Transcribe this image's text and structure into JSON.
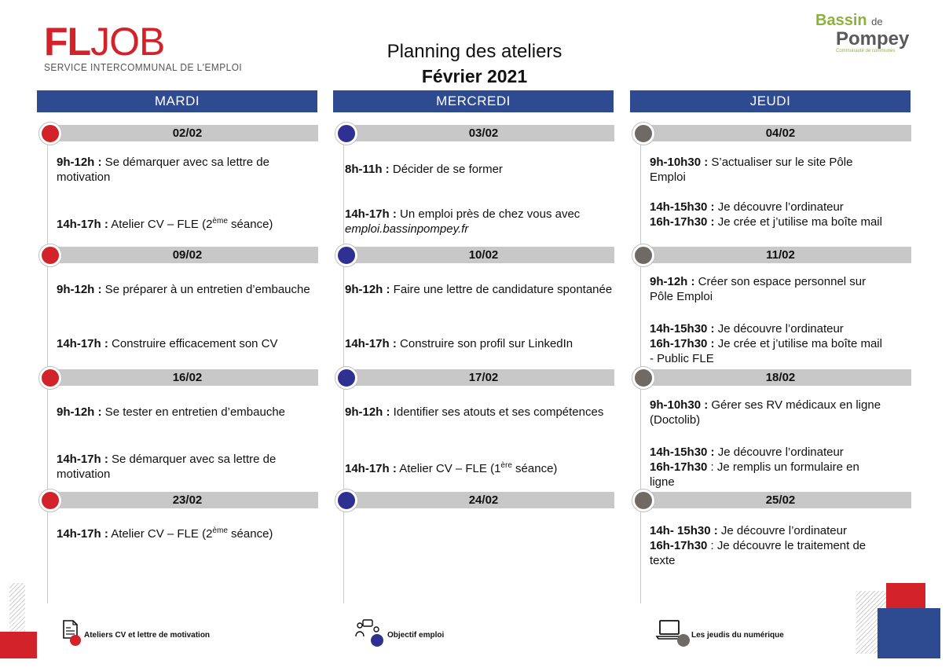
{
  "logo_left": {
    "main_bold": "FL",
    "main_rest": "JOB",
    "sub": "SERVICE INTERCOMMUNAL DE L'EMPLOI"
  },
  "logo_right": {
    "line1": "Bassin",
    "line1_small": "de",
    "line2": "Pompey",
    "line3": "Communauté de communes"
  },
  "title": "Planning des ateliers",
  "subtitle": "Février 2021",
  "colors": {
    "header": "#2e4a91",
    "mardi": "#d2232a",
    "mercredi": "#2e3192",
    "jeudi": "#6f6a64",
    "datebar": "#c8c8c8"
  },
  "days": [
    "MARDI",
    "MERCREDI",
    "JEUDI"
  ],
  "weeks": [
    {
      "dates": [
        "02/02",
        "03/02",
        "04/02"
      ]
    },
    {
      "dates": [
        "09/02",
        "10/02",
        "11/02"
      ]
    },
    {
      "dates": [
        "16/02",
        "17/02",
        "18/02"
      ]
    },
    {
      "dates": [
        "23/02",
        "24/02",
        "25/02"
      ]
    }
  ],
  "entries": {
    "w1": {
      "mardi_a_time": "9h-12h :",
      "mardi_a_text": " Se démarquer avec sa lettre de motivation",
      "mardi_b_time": "14h-17h :",
      "mardi_b_text": " Atelier CV – FLE (2",
      "mardi_b_sup": "ème",
      "mardi_b_tail": " séance)",
      "mercredi_a_time": "8h-11h :",
      "mercredi_a_text": " Décider de se former",
      "mercredi_b_time": "14h-17h :",
      "mercredi_b_text": " Un emploi près de chez vous avec",
      "mercredi_b_link": "emploi.bassinpompey.fr",
      "jeudi_a_time": "9h-10h30 :",
      "jeudi_a_text": " S’actualiser sur le site Pôle Emploi",
      "jeudi_b1_time": "14h-15h30 :",
      "jeudi_b1_text": " Je découvre l’ordinateur",
      "jeudi_b2_time": "16h-17h30 :",
      "jeudi_b2_text": " Je crée et j’utilise ma boîte mail"
    },
    "w2": {
      "mardi_a_time": "9h-12h :",
      "mardi_a_text": " Se préparer à un entretien d’embauche",
      "mardi_b_time": "14h-17h :",
      "mardi_b_text": " Construire efficacement son CV",
      "mercredi_a_time": "9h-12h :",
      "mercredi_a_text": " Faire une lettre de candidature spontanée",
      "mercredi_b_time": "14h-17h :",
      "mercredi_b_text": " Construire son profil sur LinkedIn",
      "jeudi_a_time": "9h-12h :",
      "jeudi_a_text": " Créer son espace personnel sur Pôle Emploi",
      "jeudi_b1_time": "14h-15h30 :",
      "jeudi_b1_text": " Je découvre l’ordinateur",
      "jeudi_b2_time": "16h-17h30 :",
      "jeudi_b2_text": " Je crée et j’utilise ma boîte mail - Public FLE"
    },
    "w3": {
      "mardi_a_time": "9h-12h :",
      "mardi_a_text": " Se tester en entretien d’embauche",
      "mardi_b_time": "14h-17h :",
      "mardi_b_text": " Se démarquer avec sa lettre de motivation",
      "mercredi_a_time": "9h-12h :",
      "mercredi_a_text": " Identifier ses atouts et ses compétences",
      "mercredi_b_time": "14h-17h :",
      "mercredi_b_text": " Atelier CV – FLE (1",
      "mercredi_b_sup": "ère",
      "mercredi_b_tail": " séance)",
      "jeudi_a_time": "9h-10h30 :",
      "jeudi_a_text": " Gérer ses RV médicaux en ligne (Doctolib)",
      "jeudi_b1_time": "14h-15h30 :",
      "jeudi_b1_text": " Je découvre l’ordinateur",
      "jeudi_b2_time": "16h-17h30",
      "jeudi_b2_text": " : Je remplis un formulaire en ligne"
    },
    "w4": {
      "mardi_a_time": "14h-17h :",
      "mardi_a_text": " Atelier CV – FLE (2",
      "mardi_a_sup": "ème",
      "mardi_a_tail": " séance)",
      "jeudi_b1_time": "14h- 15h30 :",
      "jeudi_b1_text": " Je découvre l’ordinateur",
      "jeudi_b2_time": "16h-17h30",
      "jeudi_b2_text": " : Je découvre le traitement de texte"
    }
  },
  "legend": [
    {
      "label": "Ateliers CV et lettre de motivation",
      "icon": "document-icon"
    },
    {
      "label": "Objectif emploi",
      "icon": "people-chat-icon"
    },
    {
      "label": "Les jeudis du numérique",
      "icon": "laptop-icon"
    }
  ]
}
